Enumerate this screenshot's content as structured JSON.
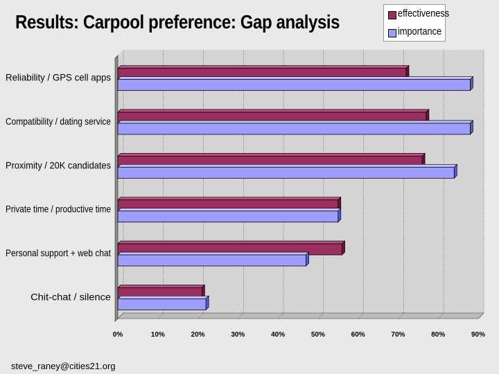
{
  "colors": {
    "effectiveness": "#9b3060",
    "effectiveness_top": "#b95082",
    "effectiveness_side": "#5e1a3a",
    "importance": "#9e9eff",
    "importance_top": "#c3c3ff",
    "importance_side": "#5d5dbd"
  },
  "footer": {
    "email": "steve_raney@cities21.org"
  },
  "chart_data": {
    "type": "bar",
    "orientation": "horizontal",
    "title": "Results: Carpool preference: Gap analysis",
    "xlabel": "",
    "ylabel": "",
    "xlim": [
      0,
      90
    ],
    "x_ticks": [
      0,
      10,
      20,
      30,
      40,
      50,
      60,
      70,
      80,
      90
    ],
    "x_tick_labels": [
      "0%",
      "10%",
      "20%",
      "30%",
      "40%",
      "50%",
      "60%",
      "70%",
      "80%",
      "90%"
    ],
    "grid": true,
    "legend_position": "top-right",
    "categories": [
      "Reliability / GPS cell apps",
      "Compatibility / dating service",
      "Proximity / 20K candidates",
      "Private time / productive time",
      "Personal support + web chat",
      "Chit-chat / silence"
    ],
    "series": [
      {
        "name": "effectiveness",
        "values": [
          72,
          77,
          76,
          55,
          56,
          21
        ]
      },
      {
        "name": "importance",
        "values": [
          88,
          88,
          84,
          55,
          47,
          22
        ]
      }
    ]
  }
}
